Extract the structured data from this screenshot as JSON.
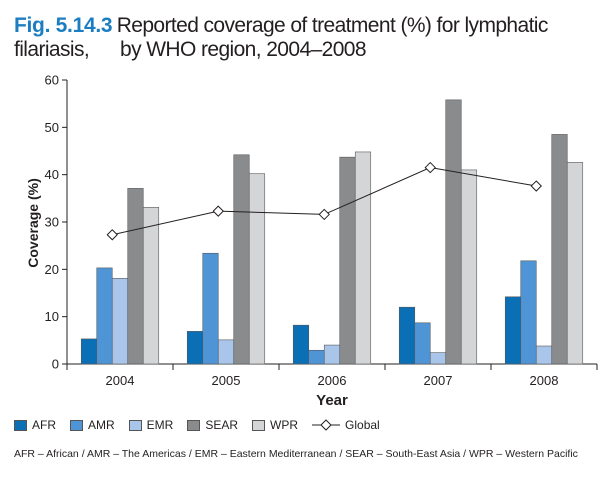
{
  "figure": {
    "number": "Fig. 5.14.3",
    "title_line1": "Reported coverage of treatment (%) for lymphatic filariasis,",
    "title_line2": "by WHO region, 2004–2008",
    "footnote": "AFR – African / AMR – The Americas / EMR – Eastern Mediterranean / SEAR – South-East Asia / WPR – Western Pacific"
  },
  "chart_data": {
    "type": "bar",
    "title": "Reported coverage of treatment (%) for lymphatic filariasis, by WHO region, 2004–2008",
    "xlabel": "Year",
    "ylabel": "Coverage (%)",
    "ylim": [
      0,
      60
    ],
    "yticks": [
      0,
      10,
      20,
      30,
      40,
      50,
      60
    ],
    "grid": false,
    "legend_position": "bottom",
    "categories": [
      "2004",
      "2005",
      "2006",
      "2007",
      "2008"
    ],
    "series": [
      {
        "name": "AFR",
        "color": "#0b6fb6",
        "values": [
          5.3,
          6.9,
          8.2,
          12.0,
          14.2
        ]
      },
      {
        "name": "AMR",
        "color": "#4f95d6",
        "values": [
          20.3,
          23.4,
          2.9,
          8.7,
          21.8
        ]
      },
      {
        "name": "EMR",
        "color": "#a9c6ea",
        "values": [
          18.1,
          5.1,
          4.0,
          2.4,
          3.8
        ]
      },
      {
        "name": "SEAR",
        "color": "#8a8b8d",
        "values": [
          37.1,
          44.2,
          43.7,
          55.8,
          48.5
        ]
      },
      {
        "name": "WPR",
        "color": "#d4d5d6",
        "values": [
          33.1,
          40.2,
          44.8,
          41.0,
          42.6
        ]
      }
    ],
    "line_series": {
      "name": "Global",
      "type": "line",
      "marker": "diamond",
      "color": "#231f20",
      "values": [
        27.3,
        32.3,
        31.6,
        41.5,
        37.6
      ]
    }
  }
}
